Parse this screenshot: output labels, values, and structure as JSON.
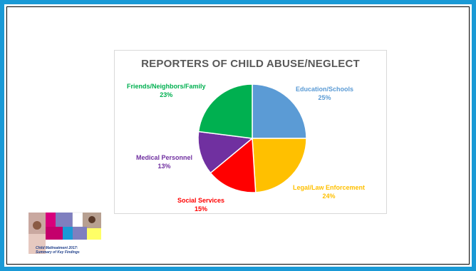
{
  "chart_data": {
    "type": "pie",
    "title": "REPORTERS OF CHILD ABUSE/NEGLECT",
    "slices": [
      {
        "name": "Education/Schools",
        "value": 25,
        "label": "25%",
        "color": "#5b9bd5"
      },
      {
        "name": "Legal/Law Enforcement",
        "value": 24,
        "label": "24%",
        "color": "#ffc000"
      },
      {
        "name": "Social Services",
        "value": 15,
        "label": "15%",
        "color": "#ff0000"
      },
      {
        "name": "Medical Personnel",
        "value": 13,
        "label": "13%",
        "color": "#7030a0"
      },
      {
        "name": "Friends/Neighbors/Family",
        "value": 23,
        "label": "23%",
        "color": "#00b050"
      }
    ],
    "legend": "none"
  },
  "logo": {
    "caption_line1": "Child Maltreatment 2017:",
    "caption_line2": "Summary of Key Findings"
  },
  "colors": {
    "frame": "#1a9ad6",
    "title_text": "#595959",
    "logo_text": "#1f3f8a"
  }
}
